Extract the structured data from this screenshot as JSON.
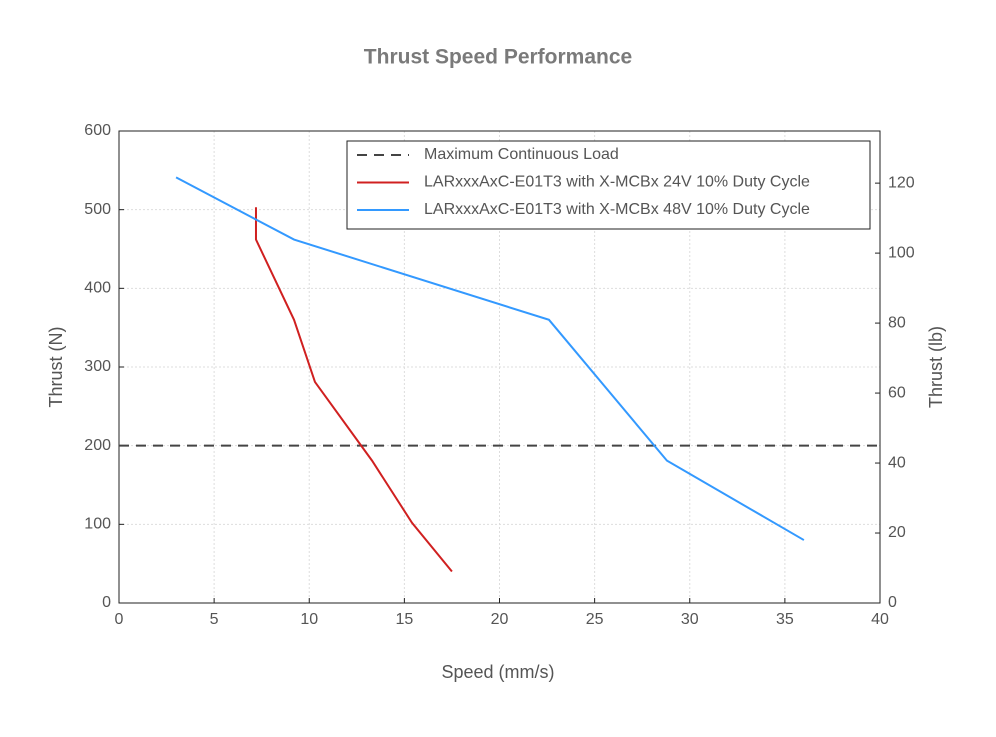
{
  "chart_data": {
    "type": "line",
    "title": "Thrust Speed Performance",
    "xlabel": "Speed (mm/s)",
    "ylabel": "Thrust (N)",
    "y2label": "Thrust (lb)",
    "xlim": [
      0,
      40
    ],
    "xticks": [
      0,
      5,
      10,
      15,
      20,
      25,
      30,
      35,
      40
    ],
    "ylim": [
      0,
      600
    ],
    "yticks": [
      0,
      100,
      200,
      300,
      400,
      500,
      600
    ],
    "y2lim": [
      0,
      134.9
    ],
    "y2ticks": [
      0,
      20,
      40,
      60,
      80,
      100,
      120
    ],
    "grid": true,
    "legend": "upper right",
    "series": [
      {
        "name": "Maximum Continuous Load",
        "color": "#444444",
        "dashed": true,
        "x": [
          0,
          40
        ],
        "values": [
          200,
          200
        ]
      },
      {
        "name": "LARxxxAxC-E01T3 with X-MCBx 24V 10% Duty Cycle",
        "color": "#d02020",
        "x": [
          7.2,
          7.2,
          9.2,
          10.3,
          13.3,
          15.4,
          17.5
        ],
        "values": [
          503,
          462,
          360,
          281,
          181,
          102,
          40
        ]
      },
      {
        "name": "LARxxxAxC-E01T3 with X-MCBx 48V 10% Duty Cycle",
        "color": "#3399ff",
        "x": [
          3.0,
          9.2,
          22.6,
          28.8,
          36.0
        ],
        "values": [
          541,
          462,
          360,
          181,
          80
        ]
      }
    ]
  }
}
